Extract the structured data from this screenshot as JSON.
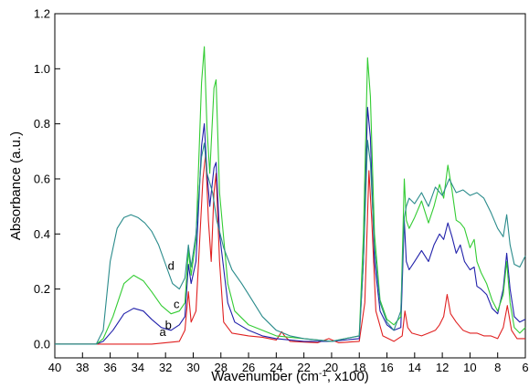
{
  "chart_data": {
    "type": "line",
    "xlabel": {
      "main": "Wavenumber (cm",
      "sup": "-1",
      "tail": ", x100)"
    },
    "ylabel": "Absorbance (a.u.)",
    "xlim": [
      40,
      6
    ],
    "ylim": [
      -0.05,
      1.2
    ],
    "xticks": [
      40,
      38,
      36,
      34,
      32,
      30,
      28,
      26,
      24,
      22,
      20,
      18,
      16,
      14,
      12,
      10,
      8,
      6
    ],
    "yticks": [
      0.0,
      0.2,
      0.4,
      0.6,
      0.8,
      1.0,
      1.2
    ],
    "ytick_labels": [
      "0.0",
      "0.2",
      "0.4",
      "0.6",
      "0.8",
      "1.0",
      "1.2"
    ],
    "grid": false,
    "series": [
      {
        "label": "a",
        "color": "#e02020",
        "label_pos": [
          32.2,
          0.03
        ],
        "points": [
          [
            40,
            0
          ],
          [
            37,
            0
          ],
          [
            35,
            0
          ],
          [
            33,
            0
          ],
          [
            31,
            0.01
          ],
          [
            30.6,
            0.05
          ],
          [
            30.35,
            0.19
          ],
          [
            30.15,
            0.08
          ],
          [
            29.8,
            0.12
          ],
          [
            29.3,
            0.6
          ],
          [
            29.1,
            0.69
          ],
          [
            28.9,
            0.45
          ],
          [
            28.7,
            0.3
          ],
          [
            28.5,
            0.55
          ],
          [
            28.35,
            0.62
          ],
          [
            28.1,
            0.3
          ],
          [
            27.8,
            0.08
          ],
          [
            27.2,
            0.04
          ],
          [
            26,
            0.03
          ],
          [
            25,
            0.025
          ],
          [
            24,
            0.015
          ],
          [
            23.6,
            0.045
          ],
          [
            23.4,
            0.03
          ],
          [
            23,
            0.01
          ],
          [
            21,
            0.005
          ],
          [
            20.2,
            0.02
          ],
          [
            19.5,
            0.005
          ],
          [
            18,
            0.01
          ],
          [
            17.6,
            0.15
          ],
          [
            17.3,
            0.63
          ],
          [
            17.1,
            0.45
          ],
          [
            16.8,
            0.12
          ],
          [
            16.3,
            0.03
          ],
          [
            15.5,
            0.01
          ],
          [
            14.9,
            0.03
          ],
          [
            14.7,
            0.12
          ],
          [
            14.5,
            0.06
          ],
          [
            14.2,
            0.04
          ],
          [
            13.5,
            0.03
          ],
          [
            13,
            0.04
          ],
          [
            12.5,
            0.05
          ],
          [
            12.2,
            0.07
          ],
          [
            11.9,
            0.1
          ],
          [
            11.65,
            0.18
          ],
          [
            11.4,
            0.11
          ],
          [
            11,
            0.08
          ],
          [
            10.5,
            0.05
          ],
          [
            10,
            0.04
          ],
          [
            9.5,
            0.04
          ],
          [
            9,
            0.03
          ],
          [
            8.5,
            0.03
          ],
          [
            8,
            0.02
          ],
          [
            7.6,
            0.06
          ],
          [
            7.3,
            0.14
          ],
          [
            7,
            0.05
          ],
          [
            6.6,
            0.02
          ],
          [
            6,
            0.02
          ]
        ]
      },
      {
        "label": "b",
        "color": "#2020aa",
        "label_pos": [
          31.8,
          0.055
        ],
        "points": [
          [
            40,
            0
          ],
          [
            37,
            0
          ],
          [
            36.5,
            0.01
          ],
          [
            35.8,
            0.05
          ],
          [
            35,
            0.11
          ],
          [
            34.3,
            0.13
          ],
          [
            33.6,
            0.12
          ],
          [
            33,
            0.09
          ],
          [
            32.3,
            0.06
          ],
          [
            31.6,
            0.05
          ],
          [
            31,
            0.07
          ],
          [
            30.6,
            0.1
          ],
          [
            30.35,
            0.29
          ],
          [
            30.15,
            0.22
          ],
          [
            29.8,
            0.3
          ],
          [
            29.4,
            0.72
          ],
          [
            29.2,
            0.8
          ],
          [
            29,
            0.62
          ],
          [
            28.8,
            0.5
          ],
          [
            28.5,
            0.64
          ],
          [
            28.35,
            0.66
          ],
          [
            28.1,
            0.4
          ],
          [
            27.5,
            0.15
          ],
          [
            27,
            0.08
          ],
          [
            26,
            0.05
          ],
          [
            25,
            0.03
          ],
          [
            24,
            0.02
          ],
          [
            22,
            0.01
          ],
          [
            20,
            0.01
          ],
          [
            18,
            0.02
          ],
          [
            17.7,
            0.3
          ],
          [
            17.4,
            0.86
          ],
          [
            17.2,
            0.75
          ],
          [
            16.9,
            0.3
          ],
          [
            16.5,
            0.12
          ],
          [
            16,
            0.07
          ],
          [
            15.5,
            0.05
          ],
          [
            15,
            0.06
          ],
          [
            14.75,
            0.45
          ],
          [
            14.6,
            0.3
          ],
          [
            14.4,
            0.27
          ],
          [
            14,
            0.3
          ],
          [
            13.5,
            0.34
          ],
          [
            13,
            0.3
          ],
          [
            12.6,
            0.36
          ],
          [
            12.2,
            0.4
          ],
          [
            11.9,
            0.38
          ],
          [
            11.6,
            0.44
          ],
          [
            11.3,
            0.39
          ],
          [
            11,
            0.33
          ],
          [
            10.7,
            0.36
          ],
          [
            10.4,
            0.3
          ],
          [
            10,
            0.27
          ],
          [
            9.7,
            0.28
          ],
          [
            9.5,
            0.21
          ],
          [
            9.2,
            0.2
          ],
          [
            8.8,
            0.18
          ],
          [
            8.4,
            0.13
          ],
          [
            8,
            0.11
          ],
          [
            7.6,
            0.2
          ],
          [
            7.35,
            0.33
          ],
          [
            7.1,
            0.2
          ],
          [
            6.8,
            0.1
          ],
          [
            6.4,
            0.08
          ],
          [
            6,
            0.09
          ]
        ]
      },
      {
        "label": "c",
        "color": "#33cc33",
        "label_pos": [
          31.2,
          0.13
        ],
        "points": [
          [
            40,
            0
          ],
          [
            37,
            0
          ],
          [
            36.5,
            0.02
          ],
          [
            35.8,
            0.1
          ],
          [
            35,
            0.22
          ],
          [
            34.3,
            0.25
          ],
          [
            33.6,
            0.23
          ],
          [
            33,
            0.19
          ],
          [
            32.3,
            0.14
          ],
          [
            31.6,
            0.11
          ],
          [
            31,
            0.12
          ],
          [
            30.6,
            0.15
          ],
          [
            30.35,
            0.34
          ],
          [
            30.15,
            0.25
          ],
          [
            29.8,
            0.38
          ],
          [
            29.4,
            0.95
          ],
          [
            29.2,
            1.08
          ],
          [
            29,
            0.78
          ],
          [
            28.8,
            0.62
          ],
          [
            28.5,
            0.93
          ],
          [
            28.35,
            0.96
          ],
          [
            28.1,
            0.55
          ],
          [
            27.5,
            0.22
          ],
          [
            27,
            0.12
          ],
          [
            26,
            0.07
          ],
          [
            25,
            0.05
          ],
          [
            24,
            0.03
          ],
          [
            22,
            0.02
          ],
          [
            20,
            0.01
          ],
          [
            18,
            0.03
          ],
          [
            17.7,
            0.4
          ],
          [
            17.4,
            1.04
          ],
          [
            17.2,
            0.9
          ],
          [
            16.9,
            0.4
          ],
          [
            16.5,
            0.16
          ],
          [
            16,
            0.09
          ],
          [
            15.5,
            0.07
          ],
          [
            15,
            0.1
          ],
          [
            14.75,
            0.6
          ],
          [
            14.6,
            0.45
          ],
          [
            14.4,
            0.42
          ],
          [
            14,
            0.46
          ],
          [
            13.5,
            0.52
          ],
          [
            13,
            0.44
          ],
          [
            12.6,
            0.5
          ],
          [
            12.2,
            0.58
          ],
          [
            11.9,
            0.53
          ],
          [
            11.6,
            0.65
          ],
          [
            11.3,
            0.56
          ],
          [
            11,
            0.45
          ],
          [
            10.7,
            0.44
          ],
          [
            10.4,
            0.42
          ],
          [
            10,
            0.35
          ],
          [
            9.7,
            0.38
          ],
          [
            9.5,
            0.3
          ],
          [
            9.2,
            0.26
          ],
          [
            8.8,
            0.22
          ],
          [
            8.4,
            0.16
          ],
          [
            8,
            0.12
          ],
          [
            7.6,
            0.18
          ],
          [
            7.35,
            0.3
          ],
          [
            7.1,
            0.15
          ],
          [
            6.8,
            0.06
          ],
          [
            6.4,
            0.04
          ],
          [
            6,
            0.06
          ]
        ]
      },
      {
        "label": "d",
        "color": "#2a8b8b",
        "label_pos": [
          31.6,
          0.27
        ],
        "points": [
          [
            40,
            0
          ],
          [
            37,
            0
          ],
          [
            36.5,
            0.05
          ],
          [
            36,
            0.3
          ],
          [
            35.5,
            0.42
          ],
          [
            35,
            0.46
          ],
          [
            34.5,
            0.47
          ],
          [
            34,
            0.46
          ],
          [
            33.5,
            0.44
          ],
          [
            33,
            0.41
          ],
          [
            32.5,
            0.36
          ],
          [
            32,
            0.29
          ],
          [
            31.5,
            0.22
          ],
          [
            31,
            0.2
          ],
          [
            30.6,
            0.24
          ],
          [
            30.35,
            0.36
          ],
          [
            30.15,
            0.28
          ],
          [
            29.8,
            0.4
          ],
          [
            29.4,
            0.68
          ],
          [
            29.2,
            0.73
          ],
          [
            29,
            0.62
          ],
          [
            28.6,
            0.55
          ],
          [
            28.3,
            0.45
          ],
          [
            27.8,
            0.35
          ],
          [
            27.2,
            0.27
          ],
          [
            26.5,
            0.22
          ],
          [
            26,
            0.18
          ],
          [
            25,
            0.1
          ],
          [
            24,
            0.05
          ],
          [
            23,
            0.03
          ],
          [
            22,
            0.02
          ],
          [
            20,
            0.01
          ],
          [
            18,
            0.03
          ],
          [
            17.7,
            0.3
          ],
          [
            17.4,
            0.74
          ],
          [
            17.2,
            0.66
          ],
          [
            16.9,
            0.35
          ],
          [
            16.5,
            0.15
          ],
          [
            16,
            0.08
          ],
          [
            15.5,
            0.05
          ],
          [
            15,
            0.12
          ],
          [
            14.75,
            0.46
          ],
          [
            14.6,
            0.5
          ],
          [
            14.4,
            0.53
          ],
          [
            14,
            0.51
          ],
          [
            13.5,
            0.55
          ],
          [
            13,
            0.5
          ],
          [
            12.5,
            0.57
          ],
          [
            12,
            0.54
          ],
          [
            11.5,
            0.6
          ],
          [
            11,
            0.55
          ],
          [
            10.5,
            0.56
          ],
          [
            10,
            0.54
          ],
          [
            9.5,
            0.55
          ],
          [
            9,
            0.53
          ],
          [
            8.5,
            0.48
          ],
          [
            8,
            0.42
          ],
          [
            7.6,
            0.39
          ],
          [
            7.35,
            0.47
          ],
          [
            7.1,
            0.36
          ],
          [
            6.8,
            0.29
          ],
          [
            6.4,
            0.28
          ],
          [
            6,
            0.32
          ]
        ]
      }
    ]
  }
}
